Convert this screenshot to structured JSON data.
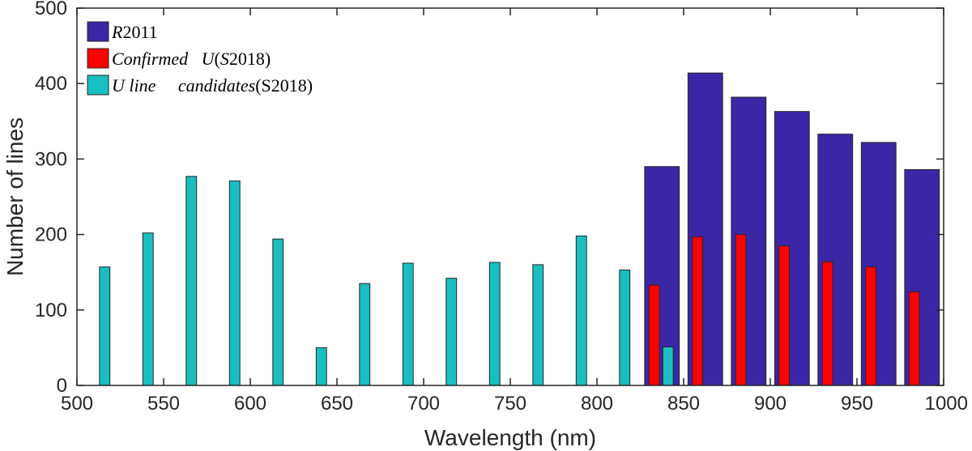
{
  "chart_data": {
    "type": "bar",
    "xlabel": "Wavelength (nm)",
    "ylabel": "Number of lines",
    "xlim": [
      500,
      1000
    ],
    "ylim": [
      0,
      500
    ],
    "xticks": [
      500,
      550,
      600,
      650,
      700,
      750,
      800,
      850,
      900,
      950,
      1000
    ],
    "yticks": [
      0,
      100,
      200,
      300,
      400,
      500
    ],
    "legend_position": "top-left",
    "series": [
      {
        "name": "R2011",
        "legend": {
          "italic": "R",
          "upright": "2011"
        },
        "color": "#3b26a6",
        "bar_width_nm": 20,
        "x": [
          837.5,
          862.5,
          887.5,
          912.5,
          937.5,
          962.5,
          987.5
        ],
        "values": [
          290,
          414,
          382,
          363,
          333,
          322,
          286
        ]
      },
      {
        "name": "Confirmed U(S2018)",
        "legend": {
          "italic": "Confirmed   U",
          "upright": "(",
          "italic2": "S",
          "upright2": "2018)"
        },
        "color": "#ff0000",
        "bar_width_nm": 6,
        "x": [
          833,
          858,
          883,
          908,
          933,
          958,
          983
        ],
        "values": [
          133,
          197,
          200,
          185,
          164,
          157,
          124
        ]
      },
      {
        "name": "U line candidates(S2018)",
        "legend": {
          "italic": "U line     candidates",
          "upright": "(S2018)"
        },
        "color": "#19bfbf",
        "bar_width_nm": 6,
        "x": [
          516,
          541,
          566,
          591,
          616,
          641,
          666,
          691,
          716,
          741,
          766,
          791,
          816,
          841
        ],
        "values": [
          157,
          202,
          277,
          271,
          194,
          50,
          135,
          162,
          142,
          163,
          160,
          198,
          153,
          51
        ]
      }
    ]
  }
}
